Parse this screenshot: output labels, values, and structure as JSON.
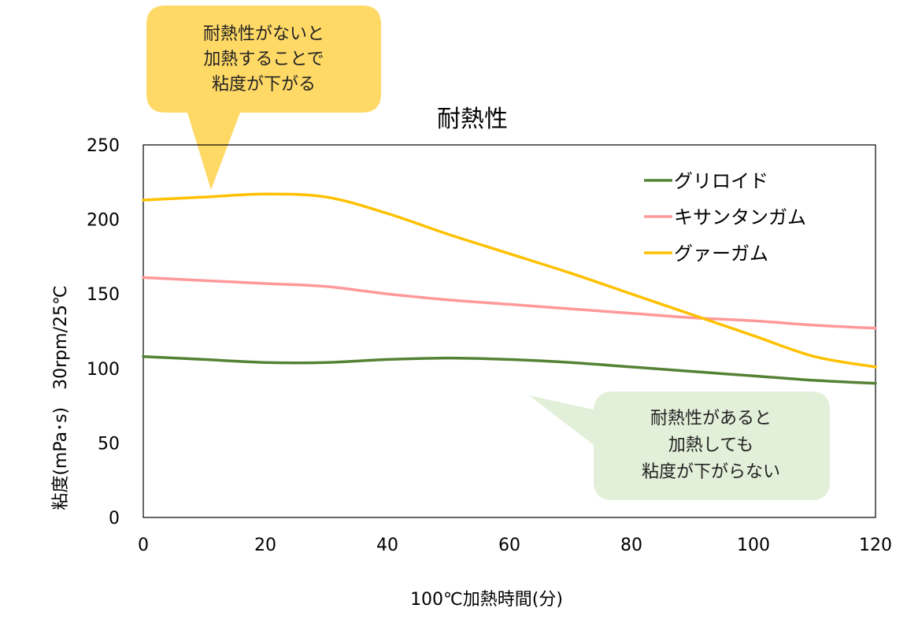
{
  "chart_data": {
    "type": "line",
    "title": "耐熱性",
    "xlabel": "100℃加熱時間(分)",
    "ylabel": "粘度(mPa･s)　30rpm/25℃",
    "xlim": [
      0,
      120
    ],
    "ylim": [
      0,
      250
    ],
    "xticks": [
      "0",
      "20",
      "40",
      "60",
      "80",
      "100",
      "120"
    ],
    "yticks": [
      "0",
      "50",
      "100",
      "150",
      "200",
      "250"
    ],
    "grid": false,
    "legend_position": "top-right",
    "series": [
      {
        "name": "グリロイド",
        "color": "#548235",
        "x": [
          0,
          10,
          20,
          30,
          40,
          50,
          60,
          70,
          80,
          90,
          100,
          110,
          120
        ],
        "y": [
          108,
          106,
          104,
          104,
          106,
          107,
          106,
          104,
          101,
          98,
          95,
          92,
          90
        ]
      },
      {
        "name": "キサンタンガム",
        "color": "#ff9999",
        "x": [
          0,
          10,
          20,
          30,
          40,
          50,
          60,
          70,
          80,
          90,
          100,
          110,
          120
        ],
        "y": [
          161,
          159,
          157,
          155,
          150,
          146,
          143,
          140,
          137,
          134,
          132,
          129,
          127
        ]
      },
      {
        "name": "グァーガム",
        "color": "#ffc000",
        "x": [
          0,
          10,
          20,
          30,
          40,
          50,
          60,
          70,
          80,
          90,
          100,
          110,
          120
        ],
        "y": [
          213,
          215,
          217,
          215,
          204,
          190,
          177,
          164,
          150,
          136,
          122,
          108,
          101
        ]
      }
    ],
    "annotations": [
      {
        "lines": [
          "耐熱性がないと",
          "加熱することで",
          "粘度が下がる"
        ],
        "color": "#ffd966"
      },
      {
        "lines": [
          "耐熱性があると",
          "加熱しても",
          "粘度が下がらない"
        ],
        "color": "#e2efd9"
      }
    ]
  }
}
